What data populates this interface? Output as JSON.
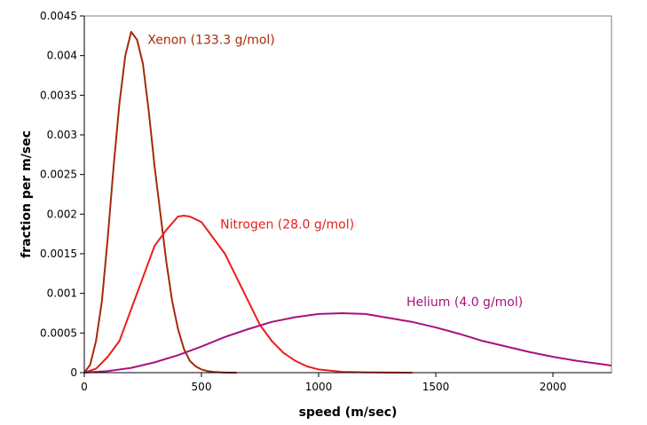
{
  "chart_data": {
    "type": "line",
    "title": "",
    "xlabel": "speed (m/sec)",
    "ylabel": "fraction per m/sec",
    "xlim": [
      0,
      2250
    ],
    "ylim": [
      0,
      0.0045
    ],
    "x_ticks": [
      0,
      500,
      1000,
      1500,
      2000
    ],
    "x_tick_labels": [
      "0",
      "500",
      "1000",
      "1500",
      "2000"
    ],
    "y_ticks": [
      0,
      0.0005,
      0.001,
      0.0015,
      0.002,
      0.0025,
      0.003,
      0.0035,
      0.004,
      0.0045
    ],
    "y_tick_labels": [
      "0",
      "0.0005",
      "0.001",
      "0.0015",
      "0.002",
      "0.0025",
      "0.003",
      "0.0035",
      "0.004",
      "0.0045"
    ],
    "grid": false,
    "series": [
      {
        "name": "Xenon (133.3 g/mol)",
        "color": "#a52a0a",
        "x": [
          0,
          25,
          50,
          75,
          100,
          125,
          150,
          175,
          200,
          225,
          250,
          275,
          300,
          325,
          350,
          375,
          400,
          425,
          450,
          475,
          500,
          525,
          550,
          575,
          600,
          650
        ],
        "y": [
          0,
          0.0001,
          0.0004,
          0.0009,
          0.0017,
          0.0026,
          0.0034,
          0.004,
          0.0043,
          0.0042,
          0.0039,
          0.0033,
          0.0026,
          0.002,
          0.0014,
          0.0009,
          0.00055,
          0.0003,
          0.00015,
          8e-05,
          4e-05,
          2e-05,
          1e-05,
          5e-06,
          2e-06,
          0
        ]
      },
      {
        "name": "Nitrogen (28.0 g/mol)",
        "color": "#ee1c1c",
        "x": [
          0,
          50,
          100,
          150,
          200,
          250,
          300,
          350,
          400,
          425,
          450,
          500,
          550,
          600,
          650,
          700,
          750,
          800,
          850,
          900,
          950,
          1000,
          1100,
          1200,
          1300,
          1400
        ],
        "y": [
          0,
          5e-05,
          0.0002,
          0.0004,
          0.0008,
          0.0012,
          0.0016,
          0.0018,
          0.00197,
          0.00198,
          0.00197,
          0.0019,
          0.0017,
          0.0015,
          0.0012,
          0.0009,
          0.0006,
          0.0004,
          0.00025,
          0.00015,
          8e-05,
          4e-05,
          1e-05,
          4e-06,
          1e-06,
          0
        ]
      },
      {
        "name": "Helium (4.0 g/mol)",
        "color": "#a8127e",
        "x": [
          0,
          100,
          200,
          300,
          400,
          500,
          600,
          700,
          800,
          900,
          1000,
          1100,
          1200,
          1300,
          1400,
          1500,
          1600,
          1700,
          1800,
          1900,
          2000,
          2100,
          2200,
          2250
        ],
        "y": [
          0,
          2e-05,
          6e-05,
          0.00013,
          0.00022,
          0.00033,
          0.00045,
          0.00055,
          0.00064,
          0.0007,
          0.00074,
          0.00075,
          0.00074,
          0.00069,
          0.00064,
          0.00057,
          0.00049,
          0.0004,
          0.00033,
          0.00026,
          0.0002,
          0.00015,
          0.00011,
          9e-05
        ]
      }
    ],
    "annotations": [
      {
        "text": "Xenon (133.3 g/mol)",
        "series": 0,
        "x": 270,
        "y": 0.00415,
        "color": "#a52a0a"
      },
      {
        "text": "Nitrogen (28.0 g/mol)",
        "series": 1,
        "x": 580,
        "y": 0.00182,
        "color": "#ee1c1c"
      },
      {
        "text": "Helium (4.0 g/mol)",
        "series": 2,
        "x": 1375,
        "y": 0.00084,
        "color": "#a8127e"
      }
    ]
  }
}
